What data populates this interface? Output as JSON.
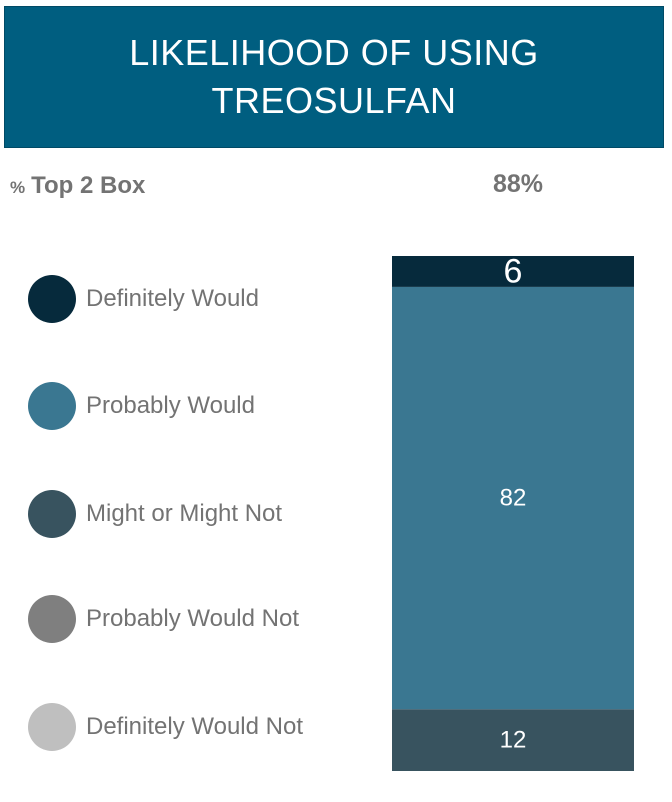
{
  "header": {
    "title": "LIKELIHOOD OF USING TREOSULFAN"
  },
  "top2": {
    "pct_symbol": "%",
    "label": "Top 2 Box",
    "value": "88%"
  },
  "legend": [
    {
      "label": "Definitely Would",
      "color": "#062a3c"
    },
    {
      "label": "Probably Would",
      "color": "#3a7791"
    },
    {
      "label": "Might or Might Not",
      "color": "#38535f"
    },
    {
      "label": "Probably Would Not",
      "color": "#7f7f7f"
    },
    {
      "label": "Definitely Would Not",
      "color": "#bfbfbf"
    }
  ],
  "chart_data": {
    "type": "bar",
    "stacked": true,
    "orientation": "vertical",
    "categories": [
      ""
    ],
    "series": [
      {
        "name": "Definitely Would",
        "values": [
          6
        ],
        "color": "#062a3c",
        "label_color": "#ffffff"
      },
      {
        "name": "Probably Would",
        "values": [
          82
        ],
        "color": "#3a7791",
        "label_color": "#ffffff"
      },
      {
        "name": "Might or Might Not",
        "values": [
          12
        ],
        "color": "#38535f",
        "label_color": "#ffffff"
      },
      {
        "name": "Probably Would Not",
        "values": [
          0
        ],
        "color": "#7f7f7f",
        "label_color": "#ffffff"
      },
      {
        "name": "Definitely Would Not",
        "values": [
          0
        ],
        "color": "#bfbfbf",
        "label_color": "#ffffff"
      }
    ],
    "ylim": [
      0,
      100
    ],
    "grid": false,
    "legend_position": "left"
  }
}
